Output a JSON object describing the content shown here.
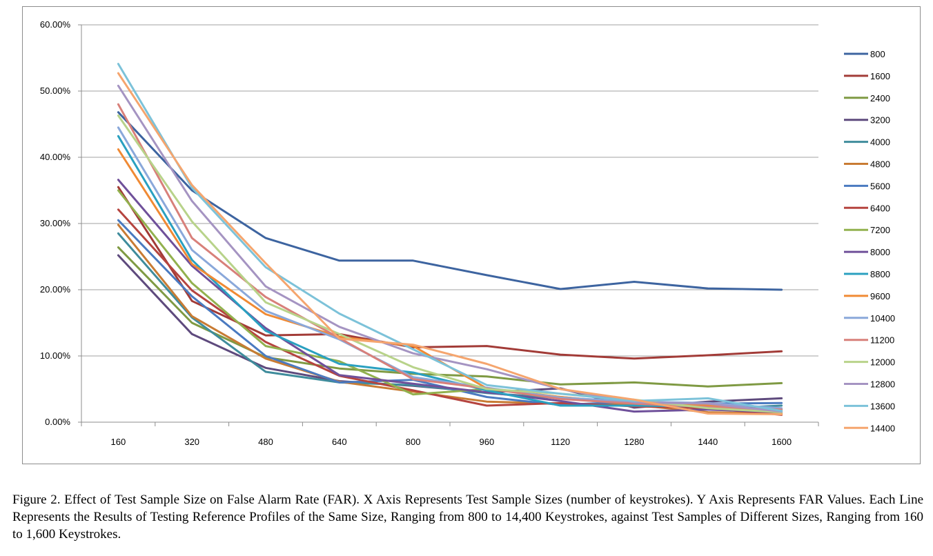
{
  "caption": "Figure 2. Effect of Test Sample Size on False Alarm Rate (FAR). X Axis Represents Test Sample Sizes (number of keystrokes). Y Axis Represents FAR Values. Each Line Represents the Results of Testing Reference Profiles of the Same Size, Ranging from 800 to 14,400 Keystrokes, against Test Samples of Different Sizes, Ranging from 160 to 1,600 Keystrokes.",
  "chart_data": {
    "type": "line",
    "title": "",
    "xlabel": "",
    "ylabel": "",
    "x": [
      "160",
      "320",
      "480",
      "640",
      "800",
      "960",
      "1120",
      "1280",
      "1440",
      "1600"
    ],
    "ylim": [
      0,
      60
    ],
    "y_ticks": [
      "0.00%",
      "10.00%",
      "20.00%",
      "30.00%",
      "40.00%",
      "50.00%",
      "60.00%"
    ],
    "y_unit": "%",
    "grid": true,
    "legend_position": "right",
    "series": [
      {
        "name": "800",
        "color": "#3d64a0",
        "values": [
          46.8,
          35.0,
          27.8,
          24.4,
          24.4,
          22.2,
          20.1,
          21.2,
          20.2,
          20.0
        ]
      },
      {
        "name": "1600",
        "color": "#a23b37",
        "values": [
          35.5,
          18.3,
          13.1,
          13.3,
          11.3,
          11.5,
          10.2,
          9.6,
          10.1,
          10.7
        ]
      },
      {
        "name": "2400",
        "color": "#7f9a43",
        "values": [
          26.4,
          15.0,
          9.8,
          8.1,
          7.3,
          6.9,
          5.7,
          6.0,
          5.4,
          5.9
        ]
      },
      {
        "name": "3200",
        "color": "#5e4a7d",
        "values": [
          25.2,
          13.3,
          8.2,
          6.2,
          5.5,
          4.5,
          5.1,
          2.2,
          3.1,
          3.6
        ]
      },
      {
        "name": "4000",
        "color": "#3f8c9c",
        "values": [
          28.5,
          15.8,
          7.6,
          6.0,
          5.6,
          4.4,
          3.6,
          2.7,
          2.0,
          2.5
        ]
      },
      {
        "name": "4800",
        "color": "#c87b33",
        "values": [
          29.8,
          16.0,
          9.6,
          6.1,
          4.6,
          3.1,
          2.8,
          2.6,
          1.5,
          1.3
        ]
      },
      {
        "name": "5600",
        "color": "#4a7ac0",
        "values": [
          30.5,
          19.0,
          10.0,
          6.0,
          6.4,
          3.8,
          2.6,
          3.1,
          2.8,
          2.9
        ]
      },
      {
        "name": "6400",
        "color": "#b5443f",
        "values": [
          32.1,
          19.9,
          12.1,
          7.0,
          4.8,
          2.5,
          2.9,
          2.4,
          2.1,
          1.1
        ]
      },
      {
        "name": "7200",
        "color": "#92b14e",
        "values": [
          35.0,
          21.0,
          11.5,
          9.2,
          4.2,
          5.0,
          3.8,
          2.8,
          2.3,
          1.9
        ]
      },
      {
        "name": "8000",
        "color": "#6f509a",
        "values": [
          36.6,
          23.6,
          14.2,
          7.1,
          5.8,
          4.5,
          3.2,
          1.6,
          1.9,
          1.5
        ]
      },
      {
        "name": "8800",
        "color": "#2aa0c0",
        "values": [
          43.2,
          24.5,
          13.8,
          8.8,
          7.5,
          4.8,
          2.5,
          2.5,
          2.4,
          1.9
        ]
      },
      {
        "name": "9600",
        "color": "#f08a34",
        "values": [
          41.2,
          23.9,
          16.3,
          12.9,
          11.5,
          5.1,
          3.8,
          2.9,
          2.6,
          1.6
        ]
      },
      {
        "name": "10400",
        "color": "#8aa8da",
        "values": [
          44.5,
          26.0,
          16.8,
          12.5,
          6.8,
          5.2,
          3.7,
          3.1,
          2.9,
          2.1
        ]
      },
      {
        "name": "11200",
        "color": "#d8807a",
        "values": [
          48.0,
          27.8,
          18.9,
          12.7,
          6.5,
          5.1,
          3.5,
          2.8,
          2.3,
          1.9
        ]
      },
      {
        "name": "12000",
        "color": "#b8d38a",
        "values": [
          46.3,
          30.3,
          18.1,
          13.3,
          8.3,
          5.0,
          4.3,
          3.4,
          2.1,
          1.5
        ]
      },
      {
        "name": "12800",
        "color": "#a594c2",
        "values": [
          50.8,
          33.4,
          20.5,
          14.4,
          10.4,
          8.0,
          5.0,
          3.0,
          2.8,
          1.6
        ]
      },
      {
        "name": "13600",
        "color": "#7cc2d9",
        "values": [
          54.1,
          35.4,
          23.4,
          16.4,
          11.0,
          5.6,
          4.3,
          3.2,
          3.6,
          1.7
        ]
      },
      {
        "name": "14400",
        "color": "#f5a56e",
        "values": [
          52.7,
          35.8,
          24.0,
          12.6,
          11.7,
          8.8,
          5.0,
          3.4,
          1.3,
          1.2
        ]
      }
    ]
  }
}
